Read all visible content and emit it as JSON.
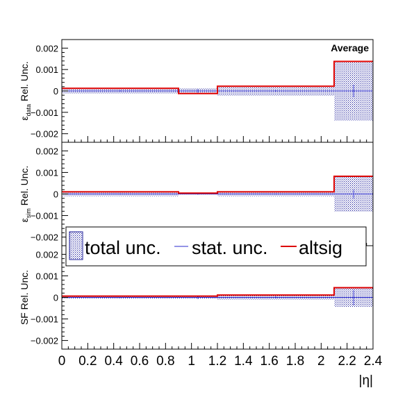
{
  "chart_data": [
    {
      "type": "line",
      "panel": "data",
      "ylabel_symbol": "ε",
      "ylabel_sub": "data",
      "ylabel_rest": " Rel. Unc.",
      "corner_label": "Average",
      "xlim": [
        0,
        2.4
      ],
      "ylim": [
        -0.0024,
        0.0024
      ],
      "yticks": [
        -0.002,
        -0.001,
        0,
        0.001,
        0.002
      ],
      "ytick_labels": [
        "−0.002",
        "−0.001",
        "0",
        "0.001",
        "0.002"
      ],
      "bin_edges": [
        0,
        0.9,
        1.2,
        2.1,
        2.4
      ],
      "bin_centers": [
        0.45,
        1.05,
        1.65,
        2.25
      ],
      "series": [
        {
          "name": "total unc.",
          "values": [
            0.00013,
            0.00013,
            0.00022,
            0.00138
          ]
        },
        {
          "name": "stat. unc.",
          "values": [
            3e-05,
            8e-05,
            3e-05,
            0.0003
          ]
        },
        {
          "name": "altsig",
          "values": [
            0.00012,
            -0.00012,
            0.00022,
            0.00138
          ]
        }
      ]
    },
    {
      "type": "line",
      "panel": "sim",
      "ylabel_symbol": "ε",
      "ylabel_sub": "sim",
      "ylabel_rest": " Rel. Unc.",
      "xlim": [
        0,
        2.4
      ],
      "ylim": [
        -0.0024,
        0.0024
      ],
      "yticks": [
        -0.002,
        -0.001,
        0,
        0.001,
        0.002
      ],
      "ytick_labels": [
        "−0.002",
        "−0.001",
        "0",
        "0.001",
        "0.002"
      ],
      "bin_edges": [
        0,
        0.9,
        1.2,
        2.1,
        2.4
      ],
      "bin_centers": [
        0.45,
        1.05,
        1.65,
        2.25
      ],
      "series": [
        {
          "name": "total unc.",
          "values": [
            0.0001,
            4e-05,
            0.0001,
            0.00082
          ]
        },
        {
          "name": "stat. unc.",
          "values": [
            2e-05,
            3e-05,
            2e-05,
            0.0002
          ]
        },
        {
          "name": "altsig",
          "values": [
            0.0001,
            4e-05,
            0.0001,
            0.00082
          ]
        }
      ]
    },
    {
      "type": "line",
      "panel": "sf",
      "ylabel": "SF Rel. Unc.",
      "xlabel": "|η|",
      "xlim": [
        0,
        2.4
      ],
      "ylim": [
        -0.0024,
        0.0024
      ],
      "yticks": [
        -0.002,
        -0.001,
        0,
        0.001,
        0.002
      ],
      "ytick_labels": [
        "−0.002",
        "−0.001",
        "0",
        "0.001",
        "0.002"
      ],
      "xticks": [
        0,
        0.2,
        0.4,
        0.6,
        0.8,
        1,
        1.2,
        1.4,
        1.6,
        1.8,
        2,
        2.2,
        2.4
      ],
      "xtick_labels": [
        "0",
        "0.2",
        "0.4",
        "0.6",
        "0.8",
        "1",
        "1.2",
        "1.4",
        "1.6",
        "1.8",
        "2",
        "2.2",
        "2.4"
      ],
      "bin_edges": [
        0,
        0.9,
        1.2,
        2.1,
        2.4
      ],
      "bin_centers": [
        0.45,
        1.05,
        1.65,
        2.25
      ],
      "series": [
        {
          "name": "total unc.",
          "values": [
            6e-05,
            6e-05,
            0.00011,
            0.00045
          ]
        },
        {
          "name": "stat. unc.",
          "values": [
            3e-05,
            8e-05,
            4e-05,
            0.00035
          ]
        },
        {
          "name": "altsig",
          "values": [
            6e-05,
            6e-05,
            0.00011,
            0.00045
          ]
        }
      ]
    }
  ],
  "legend": {
    "entries": [
      "total unc.",
      "stat. unc.",
      "altsig"
    ],
    "placement": "center-left overlay"
  },
  "colors": {
    "total_unc_fill": "#1a1a99",
    "stat_unc": "#2a2acc",
    "altsig": "#dd0000",
    "axis": "#000000"
  }
}
